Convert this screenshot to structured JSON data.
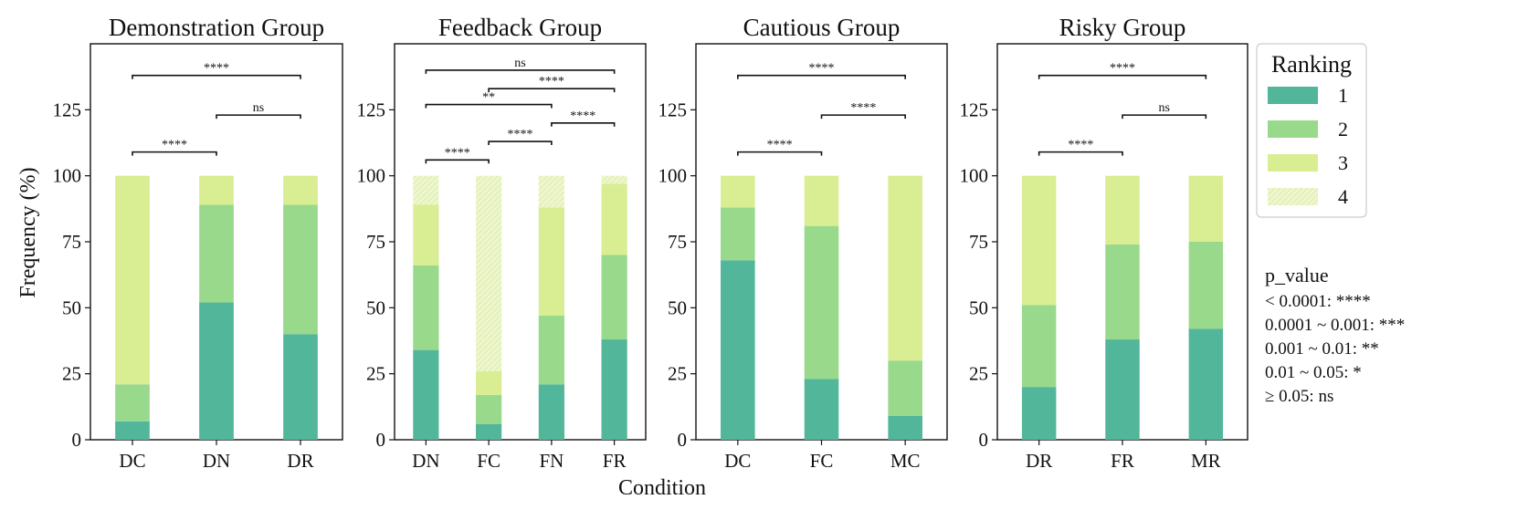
{
  "chart_data": {
    "type": "bar",
    "stacked": true,
    "xlabel": "Condition",
    "ylabel": "Frequency (%)",
    "ylim": [
      0,
      150
    ],
    "yticks": [
      0,
      25,
      50,
      75,
      100,
      125
    ],
    "legend": {
      "title": "Ranking",
      "position": "right",
      "items": [
        {
          "label": "1",
          "color": "#52b69a"
        },
        {
          "label": "2",
          "color": "#99d98c"
        },
        {
          "label": "3",
          "color": "#d9ed92"
        },
        {
          "label": "4",
          "color": "#eef7cc"
        }
      ]
    },
    "note": {
      "title": "p_value",
      "lines": [
        "< 0.0001: ****",
        "0.0001 ~ 0.001: ***",
        "0.001 ~ 0.01: **",
        "0.01 ~ 0.05: *",
        "≥ 0.05: ns"
      ]
    },
    "panels": [
      {
        "title": "Demonstration Group",
        "categories": [
          "DC",
          "DN",
          "DR"
        ],
        "series": [
          {
            "name": "1",
            "values": [
              7,
              52,
              40
            ]
          },
          {
            "name": "2",
            "values": [
              14,
              37,
              49
            ]
          },
          {
            "name": "3",
            "values": [
              79,
              11,
              11
            ]
          }
        ],
        "comparisons": [
          {
            "from": 0,
            "to": 1,
            "label": "****",
            "y": 109
          },
          {
            "from": 1,
            "to": 2,
            "label": "ns",
            "y": 123
          },
          {
            "from": 0,
            "to": 2,
            "label": "****",
            "y": 138
          }
        ]
      },
      {
        "title": "Feedback Group",
        "categories": [
          "DN",
          "FC",
          "FN",
          "FR"
        ],
        "series": [
          {
            "name": "1",
            "values": [
              34,
              6,
              21,
              38
            ]
          },
          {
            "name": "2",
            "values": [
              32,
              11,
              26,
              32
            ]
          },
          {
            "name": "3",
            "values": [
              23,
              9,
              41,
              27
            ]
          },
          {
            "name": "4",
            "values": [
              11,
              74,
              12,
              3
            ]
          }
        ],
        "comparisons": [
          {
            "from": 0,
            "to": 1,
            "label": "****",
            "y": 106
          },
          {
            "from": 1,
            "to": 2,
            "label": "****",
            "y": 113
          },
          {
            "from": 2,
            "to": 3,
            "label": "****",
            "y": 120
          },
          {
            "from": 0,
            "to": 2,
            "label": "**",
            "y": 127
          },
          {
            "from": 1,
            "to": 3,
            "label": "****",
            "y": 133
          },
          {
            "from": 0,
            "to": 3,
            "label": "ns",
            "y": 140
          }
        ]
      },
      {
        "title": "Cautious Group",
        "categories": [
          "DC",
          "FC",
          "MC"
        ],
        "series": [
          {
            "name": "1",
            "values": [
              68,
              23,
              9
            ]
          },
          {
            "name": "2",
            "values": [
              20,
              58,
              21
            ]
          },
          {
            "name": "3",
            "values": [
              12,
              19,
              70
            ]
          }
        ],
        "comparisons": [
          {
            "from": 0,
            "to": 1,
            "label": "****",
            "y": 109
          },
          {
            "from": 1,
            "to": 2,
            "label": "****",
            "y": 123
          },
          {
            "from": 0,
            "to": 2,
            "label": "****",
            "y": 138
          }
        ]
      },
      {
        "title": "Risky Group",
        "categories": [
          "DR",
          "FR",
          "MR"
        ],
        "series": [
          {
            "name": "1",
            "values": [
              20,
              38,
              42
            ]
          },
          {
            "name": "2",
            "values": [
              31,
              36,
              33
            ]
          },
          {
            "name": "3",
            "values": [
              49,
              26,
              25
            ]
          }
        ],
        "comparisons": [
          {
            "from": 0,
            "to": 1,
            "label": "****",
            "y": 109
          },
          {
            "from": 1,
            "to": 2,
            "label": "ns",
            "y": 123
          },
          {
            "from": 0,
            "to": 2,
            "label": "****",
            "y": 138
          }
        ]
      }
    ]
  }
}
